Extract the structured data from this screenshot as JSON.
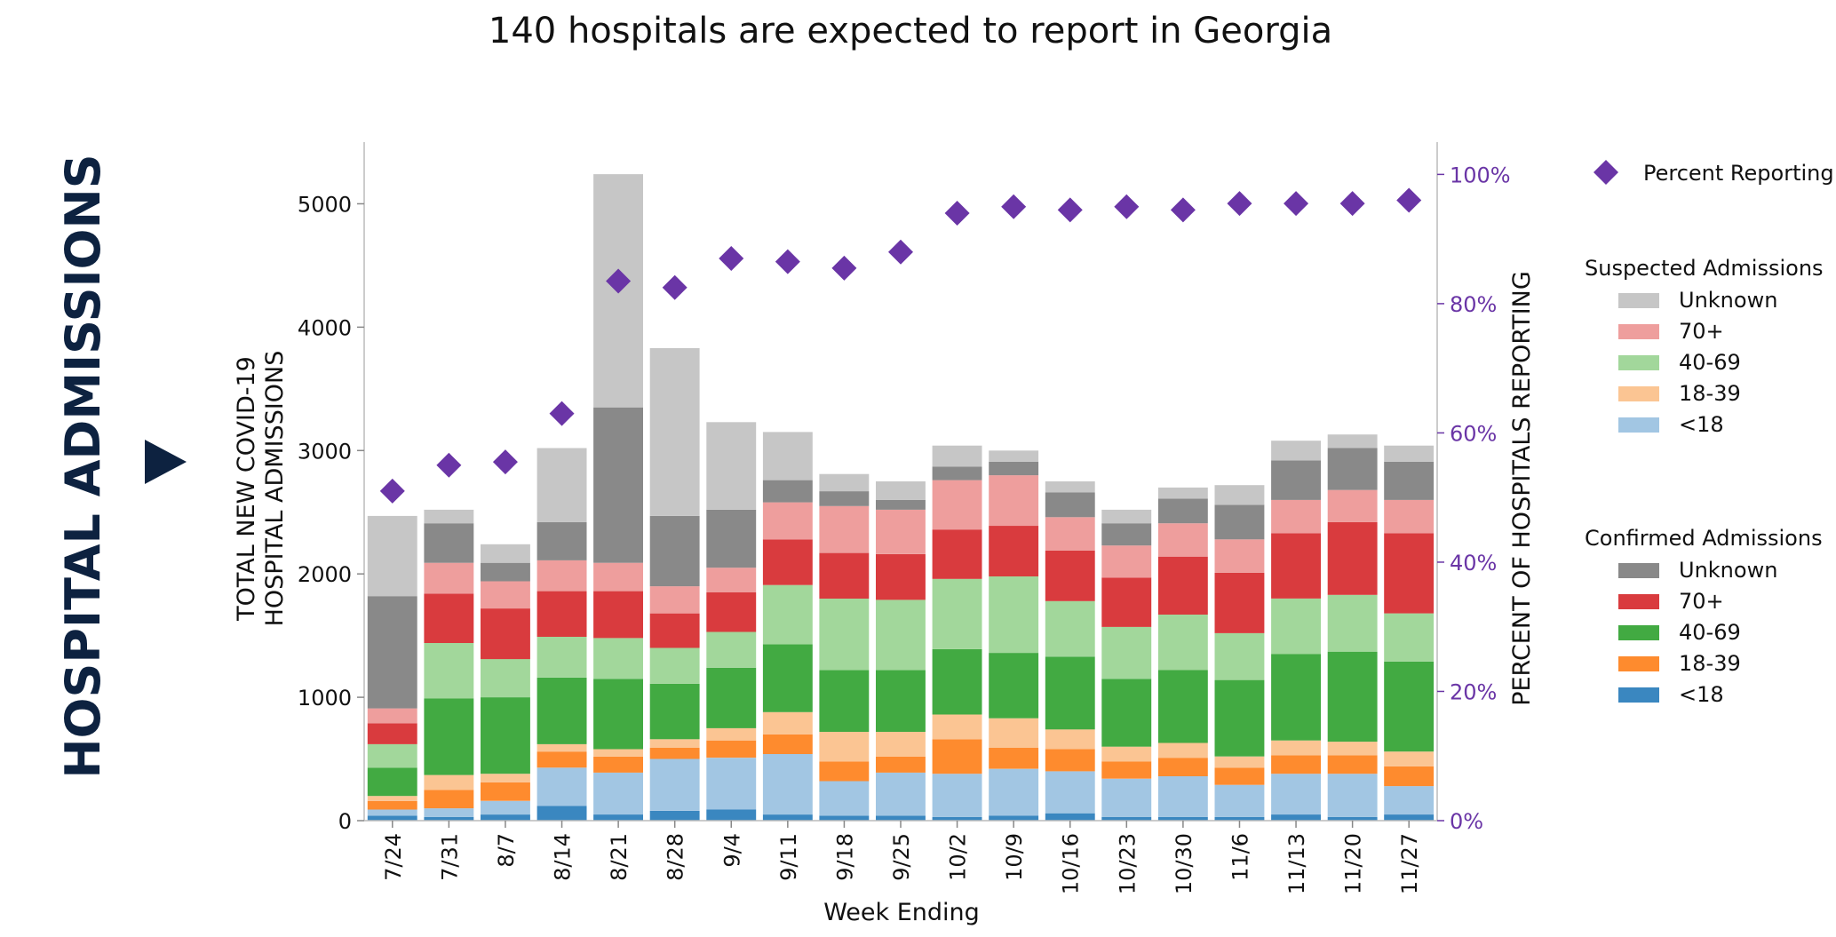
{
  "page": {
    "side_title": "HOSPITAL ADMISSIONS"
  },
  "chart_data": {
    "type": "bar",
    "stacked": true,
    "title": "140 hospitals are expected to report in Georgia",
    "xlabel": "Week Ending",
    "ylabel_line1": "TOTAL NEW COVID-19",
    "ylabel_line2": "HOSPITAL ADMISSIONS",
    "y2label": "PERCENT OF HOSPITALS REPORTING",
    "ylim": [
      0,
      5500
    ],
    "yticks": [
      0,
      1000,
      2000,
      3000,
      4000,
      5000
    ],
    "y2lim": [
      0,
      105
    ],
    "y2ticks": [
      0,
      20,
      40,
      60,
      80,
      100
    ],
    "y2ticklabels": [
      "0%",
      "20%",
      "40%",
      "60%",
      "80%",
      "100%"
    ],
    "categories": [
      "7/24",
      "7/31",
      "8/7",
      "8/14",
      "8/21",
      "8/28",
      "9/4",
      "9/11",
      "9/18",
      "9/25",
      "10/2",
      "10/9",
      "10/16",
      "10/23",
      "10/30",
      "11/6",
      "11/13",
      "11/20",
      "11/27"
    ],
    "series": [
      {
        "name": "<18",
        "group": "Confirmed Admissions",
        "color": "#3a87c0",
        "values": [
          40,
          30,
          50,
          120,
          50,
          80,
          90,
          50,
          40,
          40,
          30,
          40,
          60,
          30,
          30,
          30,
          50,
          30,
          50
        ]
      },
      {
        "name": "<18",
        "group": "Suspected Admissions",
        "color": "#a2c6e3",
        "values": [
          50,
          70,
          110,
          310,
          340,
          420,
          420,
          490,
          280,
          350,
          350,
          380,
          340,
          310,
          330,
          260,
          330,
          350,
          230
        ]
      },
      {
        "name": "18-39",
        "group": "Confirmed Admissions",
        "color": "#fe8b2e",
        "values": [
          70,
          150,
          150,
          130,
          130,
          90,
          140,
          160,
          160,
          130,
          280,
          170,
          180,
          140,
          150,
          140,
          150,
          150,
          160
        ]
      },
      {
        "name": "18-39",
        "group": "Suspected Admissions",
        "color": "#fbc593",
        "values": [
          40,
          120,
          70,
          60,
          60,
          70,
          100,
          180,
          240,
          200,
          200,
          240,
          160,
          120,
          120,
          90,
          120,
          110,
          120
        ]
      },
      {
        "name": "40-69",
        "group": "Confirmed Admissions",
        "color": "#42aa42",
        "values": [
          230,
          620,
          620,
          540,
          570,
          450,
          490,
          550,
          500,
          500,
          530,
          530,
          590,
          550,
          590,
          620,
          700,
          730,
          730
        ]
      },
      {
        "name": "40-69",
        "group": "Suspected Admissions",
        "color": "#a2d79b",
        "values": [
          190,
          450,
          310,
          330,
          330,
          290,
          290,
          480,
          580,
          570,
          570,
          620,
          450,
          420,
          450,
          380,
          450,
          460,
          390
        ]
      },
      {
        "name": "70+",
        "group": "Confirmed Admissions",
        "color": "#d93b3e",
        "values": [
          170,
          400,
          410,
          370,
          380,
          280,
          320,
          370,
          370,
          370,
          400,
          410,
          410,
          400,
          470,
          490,
          530,
          590,
          650
        ]
      },
      {
        "name": "70+",
        "group": "Suspected Admissions",
        "color": "#ee9e9d",
        "values": [
          120,
          250,
          220,
          250,
          230,
          220,
          200,
          300,
          380,
          360,
          400,
          410,
          270,
          260,
          270,
          270,
          270,
          260,
          270
        ]
      },
      {
        "name": "Unknown",
        "group": "Confirmed Admissions",
        "color": "#898989",
        "values": [
          910,
          320,
          150,
          310,
          1260,
          570,
          470,
          180,
          120,
          80,
          110,
          110,
          200,
          180,
          200,
          280,
          320,
          340,
          310
        ]
      },
      {
        "name": "Unknown",
        "group": "Suspected Admissions",
        "color": "#c6c6c6",
        "values": [
          650,
          110,
          150,
          600,
          1890,
          1360,
          710,
          390,
          140,
          150,
          170,
          90,
          90,
          110,
          90,
          160,
          160,
          110,
          130
        ]
      }
    ],
    "percent_reporting": {
      "name": "Percent Reporting",
      "color": "#6a35a6",
      "values": [
        51,
        55,
        55.5,
        63,
        83.5,
        82.5,
        87,
        86.5,
        85.5,
        88,
        94,
        95,
        94.5,
        95,
        94.5,
        95.5,
        95.5,
        95.5,
        96
      ]
    },
    "legend": {
      "placement": "right",
      "marker_label": "Percent Reporting",
      "groups": [
        {
          "title": "Suspected Admissions",
          "items": [
            {
              "label": "Unknown",
              "color": "#c6c6c6"
            },
            {
              "label": "70+",
              "color": "#ee9e9d"
            },
            {
              "label": "40-69",
              "color": "#a2d79b"
            },
            {
              "label": "18-39",
              "color": "#fbc593"
            },
            {
              "label": "<18",
              "color": "#a2c6e3"
            }
          ]
        },
        {
          "title": "Confirmed Admissions",
          "items": [
            {
              "label": "Unknown",
              "color": "#898989"
            },
            {
              "label": "70+",
              "color": "#d93b3e"
            },
            {
              "label": "40-69",
              "color": "#42aa42"
            },
            {
              "label": "18-39",
              "color": "#fe8b2e"
            },
            {
              "label": "<18",
              "color": "#3a87c0"
            }
          ]
        }
      ]
    },
    "grid": false
  }
}
